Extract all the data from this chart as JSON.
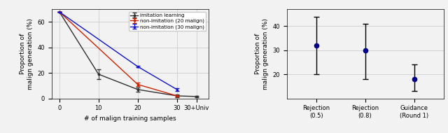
{
  "left": {
    "imitation": {
      "x": [
        0,
        10,
        20,
        30,
        35
      ],
      "y": [
        68,
        19,
        7,
        2,
        1.5
      ],
      "yerr": [
        0,
        4,
        1.5,
        1,
        0.4
      ],
      "color": "#2e2e2e",
      "label": "imitation learning"
    },
    "non_imitation_20": {
      "x": [
        0,
        20,
        30
      ],
      "y": [
        68,
        11,
        2
      ],
      "yerr": [
        0,
        1.5,
        0.4
      ],
      "color": "#cc2200",
      "label": "non-imitation (20 malign)"
    },
    "non_imitation_30": {
      "x": [
        0,
        20,
        30
      ],
      "y": [
        68,
        25,
        7
      ],
      "yerr": [
        0,
        0.5,
        1.2
      ],
      "color": "#1111cc",
      "label": "non-imitation (30 malign)"
    },
    "xlabel": "# of malign training samples",
    "ylabel": "Proportion of\nmalign generation (%)",
    "xtick_labels": [
      "0",
      "10",
      "20",
      "30",
      "30+Univ"
    ],
    "xtick_positions": [
      0,
      10,
      20,
      30,
      35
    ],
    "ylim": [
      0,
      70
    ],
    "yticks": [
      0,
      20,
      40,
      60
    ]
  },
  "right": {
    "categories": [
      "Rejection\n(0.5)",
      "Rejection\n(0.8)",
      "Guidance\n(Round 1)"
    ],
    "x": [
      0,
      1,
      2
    ],
    "y": [
      32,
      30,
      18
    ],
    "yerr_low": [
      12,
      12,
      5
    ],
    "yerr_high": [
      12,
      11,
      6
    ],
    "point_color": "#00008b",
    "ylabel": "Proportion of\nmalign generation (%)",
    "ylim": [
      10,
      47
    ],
    "yticks": [
      20,
      30,
      40
    ]
  },
  "fig_bg": "#f2f2f2",
  "ax_bg": "#f2f2f2",
  "grid_color": "#cccccc"
}
